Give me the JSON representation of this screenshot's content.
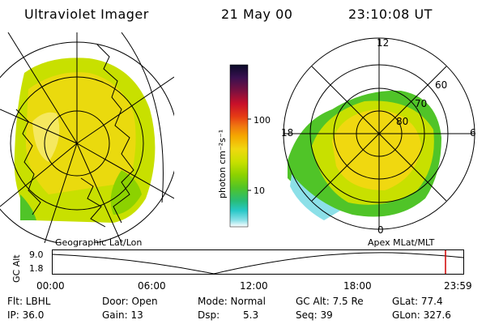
{
  "header": {
    "instrument": "Ultraviolet Imager",
    "date": "21 May 00",
    "time": "23:10:08 UT"
  },
  "colorbar": {
    "unit_label": "photon cm⁻²s⁻¹",
    "ticks": [
      "100",
      "10"
    ],
    "colors": [
      "#0a0a28",
      "#3a1050",
      "#7a1040",
      "#c8102a",
      "#e63c14",
      "#f07810",
      "#f5a800",
      "#f0d810",
      "#c8e000",
      "#8cd200",
      "#50c428",
      "#28bc78",
      "#28c8c8",
      "#8ce0e8",
      "#ffffff"
    ]
  },
  "geo_panel": {
    "label": "Geographic Lat/Lon"
  },
  "polar_panel": {
    "label": "Apex MLat/MLT",
    "mlt_labels": {
      "top": "12",
      "left": "18",
      "right": "6",
      "bottom": "0"
    },
    "lat_labels": [
      "60",
      "70",
      "80"
    ]
  },
  "timeline": {
    "ylabel": "GC Alt",
    "y_ticks": [
      "9.0",
      "1.8"
    ],
    "x_ticks": [
      "00:00",
      "06:00",
      "12:00",
      "18:00",
      "23:59"
    ],
    "marker_color": "#d00000",
    "marker_time": "23:10"
  },
  "status": {
    "flt": "Flt: LBHL",
    "ip": "IP: 36.0",
    "door": "Door: Open",
    "gain": "Gain: 13",
    "mode": "Mode: Normal",
    "dsp_label": "Dsp:",
    "dsp_value": "5.3",
    "gcalt": "GC Alt: 7.5 Re",
    "seq": "Seq: 39",
    "glat": "GLat: 77.4",
    "glon": "GLon: 327.6"
  }
}
